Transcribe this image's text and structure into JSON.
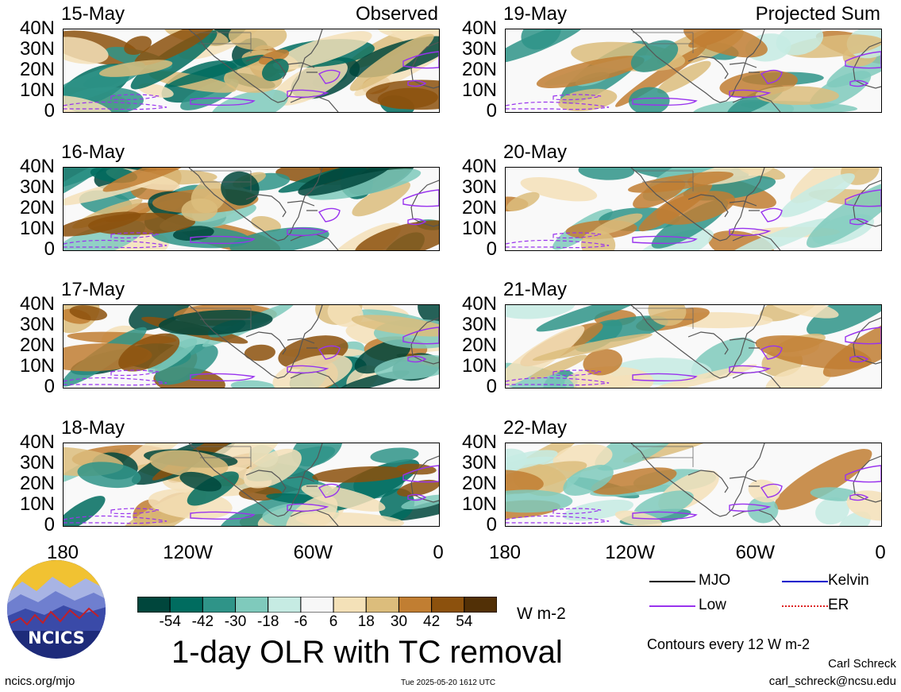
{
  "panels": [
    {
      "date": "15-May",
      "tag": "Observed",
      "col": 0,
      "row": 0,
      "mode": "obs"
    },
    {
      "date": "16-May",
      "tag": "",
      "col": 0,
      "row": 1,
      "mode": "obs"
    },
    {
      "date": "17-May",
      "tag": "",
      "col": 0,
      "row": 2,
      "mode": "obs"
    },
    {
      "date": "18-May",
      "tag": "",
      "col": 0,
      "row": 3,
      "mode": "obs"
    },
    {
      "date": "19-May",
      "tag": "Projected Sum",
      "col": 1,
      "row": 0,
      "mode": "proj"
    },
    {
      "date": "20-May",
      "tag": "",
      "col": 1,
      "row": 1,
      "mode": "proj"
    },
    {
      "date": "21-May",
      "tag": "",
      "col": 1,
      "row": 2,
      "mode": "proj"
    },
    {
      "date": "22-May",
      "tag": "",
      "col": 1,
      "row": 3,
      "mode": "proj"
    }
  ],
  "chart_data": {
    "type": "heatmap",
    "title": "1-day OLR with TC removal",
    "y_ticks": [
      "40N",
      "30N",
      "20N",
      "10N",
      "0"
    ],
    "x_ticks": [
      "180",
      "120W",
      "60W",
      "0"
    ],
    "colorbar": {
      "ticks": [
        "-54",
        "-42",
        "-30",
        "-18",
        "-6",
        "6",
        "18",
        "30",
        "42",
        "54"
      ],
      "colors": [
        "#00463c",
        "#006c5f",
        "#2f9488",
        "#7fcabc",
        "#c6ebe3",
        "#f7f7f7",
        "#f4e1b8",
        "#dcbd7c",
        "#c17e32",
        "#8c510d",
        "#523006"
      ],
      "units": "W m-2"
    },
    "legend": [
      {
        "label": "MJO",
        "color": "#000000"
      },
      {
        "label": "Kelvin",
        "color": "#0000cc"
      },
      {
        "label": "Low",
        "color": "#9933ee"
      },
      {
        "label": "ER",
        "color": "#dd2222"
      }
    ],
    "contour_note": "Contours every 12 W m-2"
  },
  "logo": {
    "text": "NCICS"
  },
  "footer": {
    "url": "ncics.org/mjo",
    "timestamp": "Tue 2025-05-20 1612 UTC",
    "author": "Carl Schreck",
    "email": "carl_schreck@ncsu.edu"
  }
}
